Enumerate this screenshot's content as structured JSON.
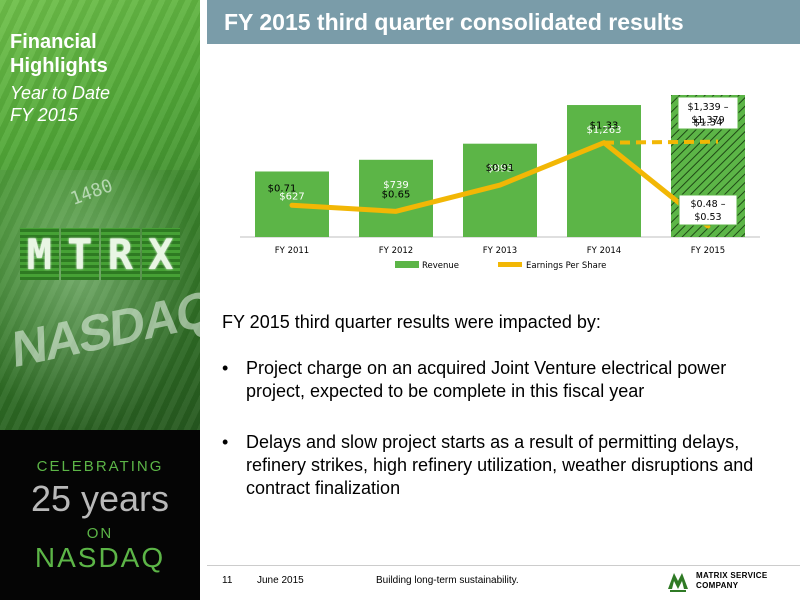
{
  "sidebar": {
    "title_line1": "Financial",
    "title_line2": "Highlights",
    "subtitle_line1": "Year to Date",
    "subtitle_line2": "FY 2015",
    "logo_text": "MTRX",
    "board_number": "1480",
    "board_text": "NASDAQ"
  },
  "badge": {
    "celebrating": "CELEBRATING",
    "years": "25 years",
    "on": "ON",
    "exchange": "NASDAQ"
  },
  "header": {
    "title": "FY 2015 third quarter consolidated results"
  },
  "chart_data": {
    "type": "bar",
    "categories": [
      "FY 2011",
      "FY 2012",
      "FY 2013",
      "FY 2014",
      "FY 2015"
    ],
    "series": [
      {
        "name": "Revenue",
        "type": "bar",
        "values": [
          627,
          739,
          893,
          1263,
          1359
        ],
        "labels": [
          "$627",
          "$739",
          "$893",
          "$1,263",
          "$1,339 – $1,379"
        ],
        "range_last": [
          1339,
          1379
        ]
      },
      {
        "name": "Earnings Per Share",
        "type": "line",
        "values": [
          0.71,
          0.65,
          0.91,
          1.33,
          0.505
        ],
        "labels": [
          "$0.71",
          "$0.65",
          "$0.91",
          "$1.33",
          "$0.48 – $0.53"
        ],
        "range_last": [
          0.48,
          0.53
        ],
        "projection_label": "$1.34",
        "projection_value": 1.34
      }
    ],
    "legend_position": "bottom",
    "colors": {
      "revenue": "#5cb547",
      "eps": "#f2b705"
    }
  },
  "body": {
    "intro": "FY 2015 third quarter results were impacted by:",
    "bullets": [
      "Project charge on an acquired Joint Venture electrical power project, expected to be complete in this fiscal year",
      "Delays and slow project starts as a result of permitting delays, refinery strikes, high refinery utilization, weather disruptions and contract finalization"
    ],
    "bullet_char": "•"
  },
  "footer": {
    "page_number": "11",
    "date": "June 2015",
    "tagline": "Building long-term sustainability.",
    "company_line1": "MATRIX SERVICE",
    "company_line2": "COMPANY"
  },
  "colors": {
    "header_bar": "#7a9ca9",
    "accent_green": "#5cb547"
  }
}
